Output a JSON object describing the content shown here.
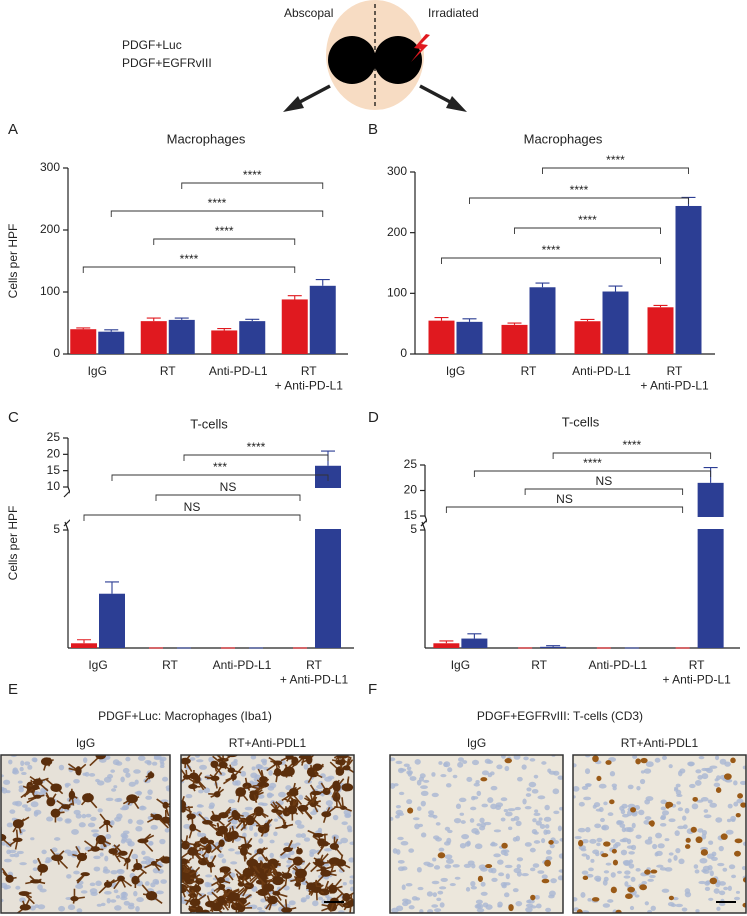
{
  "diagram": {
    "left_label": "Abscopal",
    "right_label": "Irradiated"
  },
  "chart_data": [
    {
      "type": "bar",
      "panel": "A",
      "title": "Macrophages",
      "ylabel": "Cells per HPF",
      "categories": [
        "IgG",
        "RT",
        "Anti-PD-L1",
        "RT\n+ Anti-PD-L1"
      ],
      "series": [
        {
          "name": "PDGF+Luc",
          "color": "#e0191f",
          "values": [
            40,
            53,
            38,
            88
          ],
          "errors": [
            2,
            5,
            3,
            6
          ]
        },
        {
          "name": "PDGF+EGFRvIII",
          "color": "#2c3e94",
          "values": [
            36,
            55,
            53,
            110
          ],
          "errors": [
            3,
            3,
            3,
            10
          ]
        }
      ],
      "ylim": [
        0,
        300
      ],
      "yticks": [
        0,
        100,
        200,
        300
      ],
      "annotations": [
        {
          "series": 0,
          "from": 0,
          "to": 3,
          "label": "****"
        },
        {
          "series": 0,
          "from": 1,
          "to": 3,
          "label": "****"
        },
        {
          "series": 1,
          "from": 0,
          "to": 3,
          "label": "****"
        },
        {
          "series": 1,
          "from": 1,
          "to": 3,
          "label": "****"
        }
      ]
    },
    {
      "type": "bar",
      "panel": "B",
      "title": "Macrophages",
      "categories": [
        "IgG",
        "RT",
        "Anti-PD-L1",
        "RT\n+ Anti-PD-L1"
      ],
      "series": [
        {
          "color": "#e0191f",
          "values": [
            55,
            48,
            54,
            77
          ],
          "errors": [
            5,
            3,
            3,
            3
          ]
        },
        {
          "color": "#2c3e94",
          "values": [
            53,
            110,
            103,
            244
          ],
          "errors": [
            5,
            7,
            9,
            14
          ]
        }
      ],
      "ylim": [
        0,
        300
      ],
      "yticks": [
        0,
        100,
        200,
        300
      ],
      "annotations": [
        {
          "series": 0,
          "from": 0,
          "to": 3,
          "label": "****"
        },
        {
          "series": 0,
          "from": 1,
          "to": 3,
          "label": "****"
        },
        {
          "series": 1,
          "from": 0,
          "to": 3,
          "label": "****"
        },
        {
          "series": 1,
          "from": 1,
          "to": 3,
          "label": "****"
        }
      ]
    },
    {
      "type": "bar",
      "panel": "C",
      "title": "T-cells",
      "ylabel": "Cells per HPF",
      "categories": [
        "IgG",
        "RT",
        "Anti-PD-L1",
        "RT\n+ Anti-PD-L1"
      ],
      "series": [
        {
          "color": "#e0191f",
          "values": [
            0.2,
            0,
            0,
            0
          ],
          "errors": [
            0.15,
            0,
            0,
            0
          ]
        },
        {
          "color": "#2c3e94",
          "values": [
            2.3,
            0,
            0,
            16.5
          ],
          "errors": [
            0.5,
            0,
            0,
            4.5
          ]
        }
      ],
      "ylim": [
        0,
        25
      ],
      "axis_break": [
        5,
        10
      ],
      "yticks": [
        5,
        10,
        15,
        20,
        25
      ],
      "annotations": [
        {
          "series": 0,
          "from": 0,
          "to": 3,
          "label": "NS"
        },
        {
          "series": 0,
          "from": 1,
          "to": 3,
          "label": "NS"
        },
        {
          "series": 1,
          "from": 0,
          "to": 3,
          "label": "***"
        },
        {
          "series": 1,
          "from": 1,
          "to": 3,
          "label": "****"
        }
      ]
    },
    {
      "type": "bar",
      "panel": "D",
      "title": "T-cells",
      "categories": [
        "IgG",
        "RT",
        "Anti-PD-L1",
        "RT\n+ Anti-PD-L1"
      ],
      "series": [
        {
          "color": "#e0191f",
          "values": [
            0.2,
            0,
            0,
            0
          ],
          "errors": [
            0.1,
            0,
            0,
            0
          ]
        },
        {
          "color": "#2c3e94",
          "values": [
            0.4,
            0.05,
            0,
            21.5
          ],
          "errors": [
            0.2,
            0.05,
            0,
            3
          ]
        }
      ],
      "ylim": [
        0,
        25
      ],
      "axis_break": [
        5,
        15
      ],
      "yticks": [
        5,
        15,
        20,
        25
      ],
      "annotations": [
        {
          "series": 0,
          "from": 0,
          "to": 3,
          "label": "NS"
        },
        {
          "series": 0,
          "from": 1,
          "to": 3,
          "label": "NS"
        },
        {
          "series": 1,
          "from": 0,
          "to": 3,
          "label": "****"
        },
        {
          "series": 1,
          "from": 1,
          "to": 3,
          "label": "****"
        }
      ]
    }
  ],
  "micrographs": [
    {
      "panel": "E",
      "title": "PDGF+Luc: Macrophages (Iba1)",
      "labels": [
        "IgG",
        "RT+Anti-PDL1"
      ]
    },
    {
      "panel": "F",
      "title": "PDGF+EGFRvIII: T-cells (CD3)",
      "labels": [
        "IgG",
        "RT+Anti-PDL1"
      ]
    }
  ]
}
